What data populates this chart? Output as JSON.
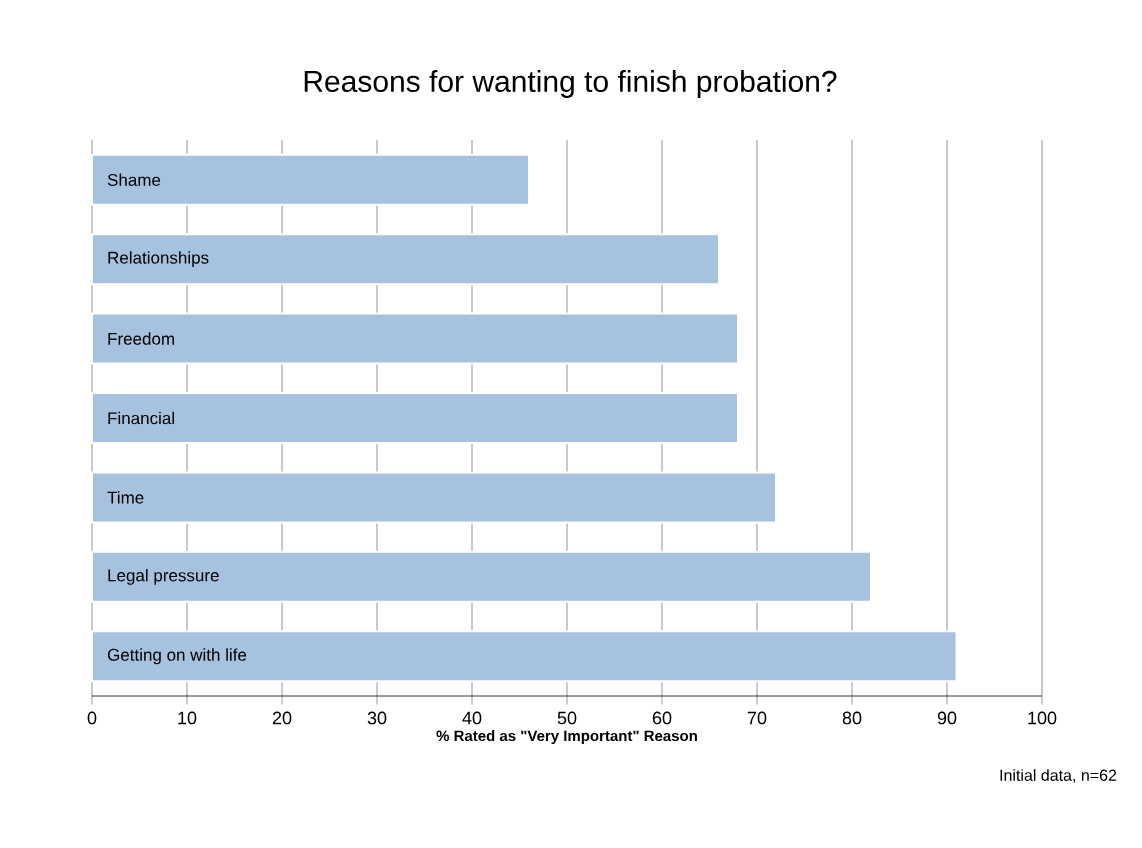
{
  "chart_data": {
    "type": "bar",
    "orientation": "horizontal",
    "title": "Reasons for wanting to finish probation?",
    "xlabel": "% Rated as \"Very Important\" Reason",
    "categories": [
      "Shame",
      "Relationships",
      "Freedom",
      "Financial",
      "Time",
      "Legal pressure",
      "Getting on with life"
    ],
    "values": [
      46,
      66,
      68,
      68,
      72,
      82,
      91
    ],
    "color": "#a6c2de",
    "xlim": [
      0,
      100
    ],
    "xticks": [
      0,
      10,
      20,
      30,
      40,
      50,
      60,
      70,
      80,
      90,
      100
    ],
    "grid": "x",
    "annotations": [
      "Initial data, n=62"
    ]
  }
}
